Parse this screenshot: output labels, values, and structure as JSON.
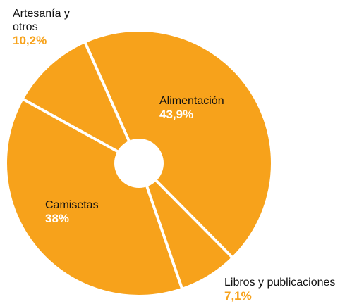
{
  "chart_data": {
    "type": "pie",
    "categories": [
      "Alimentación",
      "Libros y publicaciones",
      "Camisetas",
      "Artesanía y otros"
    ],
    "values": [
      43.9,
      7.1,
      38,
      10.2
    ],
    "value_labels": [
      "43,9%",
      "7,1%",
      "38%",
      "10,2%"
    ],
    "color": "#f7a21b"
  }
}
